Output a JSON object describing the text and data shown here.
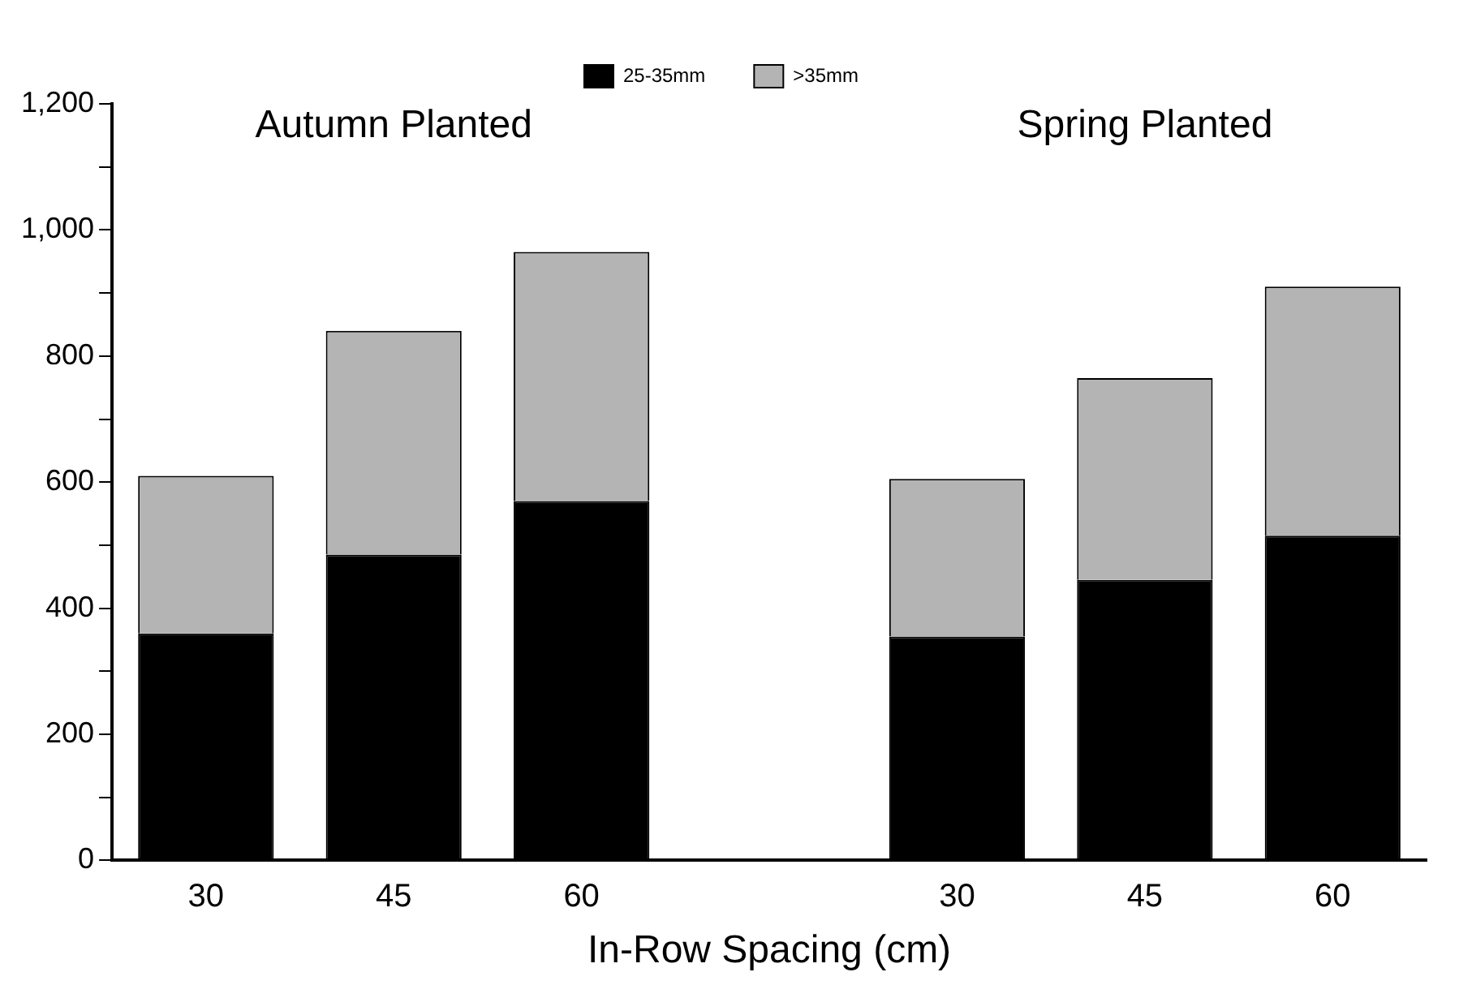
{
  "chart_data": {
    "type": "bar",
    "stacked": true,
    "xlabel": "In-Row Spacing (cm)",
    "categories": [
      "30",
      "45",
      "60",
      null,
      "30",
      "45",
      "60"
    ],
    "series": [
      {
        "name": "25-35mm",
        "color": "#000000",
        "values": [
          360,
          485,
          570,
          null,
          355,
          445,
          515
        ]
      },
      {
        "name": ">35mm",
        "color": "#b4b4b4",
        "values": [
          250,
          355,
          395,
          null,
          250,
          320,
          395
        ]
      }
    ],
    "ylim": [
      0,
      1200
    ],
    "yticks": [
      0,
      {
        "value": 100,
        "label": null
      },
      200,
      {
        "value": 300,
        "label": null
      },
      400,
      {
        "value": 500,
        "label": null
      },
      600,
      {
        "value": 700,
        "label": null
      },
      800,
      {
        "value": 900,
        "label": null
      },
      {
        "value": 1000,
        "label": "1,000"
      },
      {
        "value": 1100,
        "label": null
      },
      {
        "value": 1200,
        "label": "1,200"
      }
    ],
    "annotations": [
      "Autumn Planted",
      "Spring Planted"
    ],
    "grid": false,
    "legend": "top"
  }
}
